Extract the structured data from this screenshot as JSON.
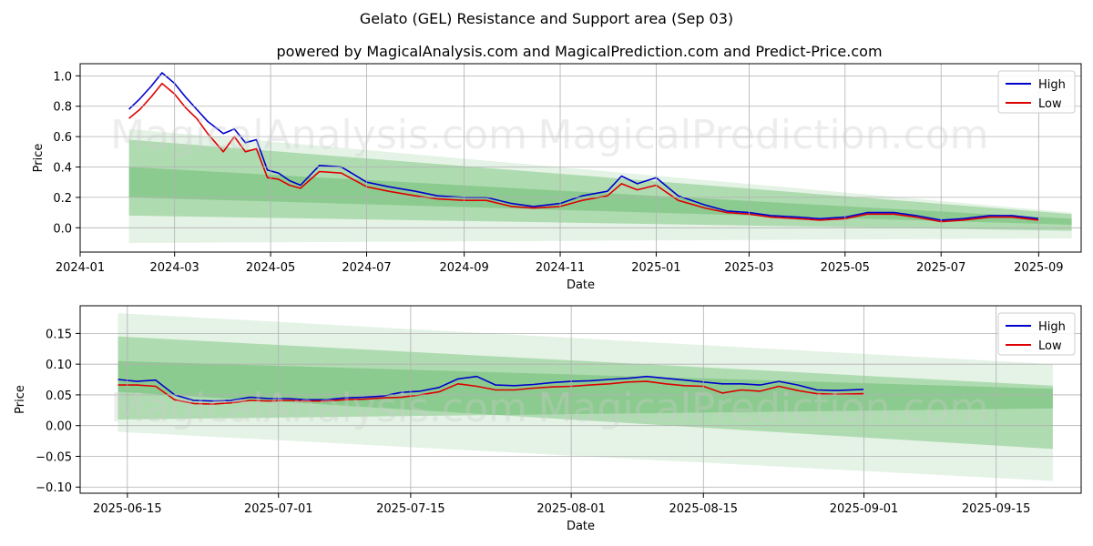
{
  "title": "Gelato (GEL) Resistance and Support area (Sep 03)",
  "subtitle": "powered by MagicalAnalysis.com and MagicalPrediction.com and Predict-Price.com",
  "watermarks": [
    "MagicalAnalysis.com",
    "MagicalPrediction.com"
  ],
  "colors": {
    "high": "#0000cc",
    "low": "#dd0000",
    "band": "#4caf50",
    "grid": "#b0b0b0"
  },
  "chart_data": [
    {
      "type": "line",
      "xlabel": "Date",
      "ylabel": "Price",
      "x_ticks": [
        "2024-01",
        "2024-03",
        "2024-05",
        "2024-07",
        "2024-09",
        "2024-11",
        "2025-01",
        "2025-03",
        "2025-05",
        "2025-07",
        "2025-09"
      ],
      "y_ticks": [
        "0.0",
        "0.2",
        "0.4",
        "0.6",
        "0.8",
        "1.0"
      ],
      "xlim": [
        "2024-01-01",
        "2025-09-28"
      ],
      "ylim": [
        -0.16,
        1.08
      ],
      "grid": true,
      "legend": "top-right",
      "legend_labels": [
        "High",
        "Low"
      ],
      "bands": [
        {
          "start": [
            "2024-02-01",
            0.58,
            0.08
          ],
          "end": [
            "2025-09-22",
            0.09,
            -0.02
          ],
          "opacity": 0.35
        },
        {
          "start": [
            "2024-02-01",
            0.4,
            0.2
          ],
          "end": [
            "2025-09-22",
            0.06,
            0.02
          ],
          "opacity": 0.35
        },
        {
          "start": [
            "2024-02-01",
            0.65,
            -0.1
          ],
          "end": [
            "2025-09-22",
            0.1,
            -0.07
          ],
          "opacity": 0.15
        }
      ],
      "series": [
        {
          "name": "High",
          "points": [
            [
              "2024-02-01",
              0.78
            ],
            [
              "2024-02-08",
              0.85
            ],
            [
              "2024-02-15",
              0.93
            ],
            [
              "2024-02-22",
              1.02
            ],
            [
              "2024-03-01",
              0.95
            ],
            [
              "2024-03-08",
              0.86
            ],
            [
              "2024-03-15",
              0.78
            ],
            [
              "2024-03-22",
              0.7
            ],
            [
              "2024-04-01",
              0.62
            ],
            [
              "2024-04-08",
              0.65
            ],
            [
              "2024-04-15",
              0.56
            ],
            [
              "2024-04-22",
              0.58
            ],
            [
              "2024-04-29",
              0.38
            ],
            [
              "2024-05-06",
              0.36
            ],
            [
              "2024-05-13",
              0.31
            ],
            [
              "2024-05-20",
              0.28
            ],
            [
              "2024-06-01",
              0.41
            ],
            [
              "2024-06-15",
              0.4
            ],
            [
              "2024-07-01",
              0.3
            ],
            [
              "2024-07-15",
              0.27
            ],
            [
              "2024-08-01",
              0.24
            ],
            [
              "2024-08-15",
              0.21
            ],
            [
              "2024-09-01",
              0.2
            ],
            [
              "2024-09-15",
              0.2
            ],
            [
              "2024-10-01",
              0.16
            ],
            [
              "2024-10-15",
              0.14
            ],
            [
              "2024-11-01",
              0.16
            ],
            [
              "2024-11-15",
              0.21
            ],
            [
              "2024-12-01",
              0.24
            ],
            [
              "2024-12-10",
              0.34
            ],
            [
              "2024-12-20",
              0.29
            ],
            [
              "2025-01-01",
              0.33
            ],
            [
              "2025-01-15",
              0.21
            ],
            [
              "2025-02-01",
              0.15
            ],
            [
              "2025-02-15",
              0.11
            ],
            [
              "2025-03-01",
              0.1
            ],
            [
              "2025-03-15",
              0.08
            ],
            [
              "2025-04-01",
              0.07
            ],
            [
              "2025-04-15",
              0.06
            ],
            [
              "2025-05-01",
              0.07
            ],
            [
              "2025-05-15",
              0.1
            ],
            [
              "2025-06-01",
              0.1
            ],
            [
              "2025-06-15",
              0.08
            ],
            [
              "2025-07-01",
              0.05
            ],
            [
              "2025-07-15",
              0.06
            ],
            [
              "2025-08-01",
              0.08
            ],
            [
              "2025-08-15",
              0.08
            ],
            [
              "2025-09-01",
              0.06
            ]
          ]
        },
        {
          "name": "Low",
          "points": [
            [
              "2024-02-01",
              0.72
            ],
            [
              "2024-02-08",
              0.78
            ],
            [
              "2024-02-15",
              0.86
            ],
            [
              "2024-02-22",
              0.95
            ],
            [
              "2024-03-01",
              0.88
            ],
            [
              "2024-03-08",
              0.79
            ],
            [
              "2024-03-15",
              0.72
            ],
            [
              "2024-03-22",
              0.62
            ],
            [
              "2024-04-01",
              0.5
            ],
            [
              "2024-04-08",
              0.6
            ],
            [
              "2024-04-15",
              0.5
            ],
            [
              "2024-04-22",
              0.52
            ],
            [
              "2024-04-29",
              0.33
            ],
            [
              "2024-05-06",
              0.32
            ],
            [
              "2024-05-13",
              0.28
            ],
            [
              "2024-05-20",
              0.26
            ],
            [
              "2024-06-01",
              0.37
            ],
            [
              "2024-06-15",
              0.36
            ],
            [
              "2024-07-01",
              0.27
            ],
            [
              "2024-07-15",
              0.24
            ],
            [
              "2024-08-01",
              0.21
            ],
            [
              "2024-08-15",
              0.19
            ],
            [
              "2024-09-01",
              0.18
            ],
            [
              "2024-09-15",
              0.18
            ],
            [
              "2024-10-01",
              0.14
            ],
            [
              "2024-10-15",
              0.13
            ],
            [
              "2024-11-01",
              0.14
            ],
            [
              "2024-11-15",
              0.18
            ],
            [
              "2024-12-01",
              0.21
            ],
            [
              "2024-12-10",
              0.29
            ],
            [
              "2024-12-20",
              0.25
            ],
            [
              "2025-01-01",
              0.28
            ],
            [
              "2025-01-15",
              0.18
            ],
            [
              "2025-02-01",
              0.13
            ],
            [
              "2025-02-15",
              0.1
            ],
            [
              "2025-03-01",
              0.09
            ],
            [
              "2025-03-15",
              0.07
            ],
            [
              "2025-04-01",
              0.06
            ],
            [
              "2025-04-15",
              0.05
            ],
            [
              "2025-05-01",
              0.06
            ],
            [
              "2025-05-15",
              0.09
            ],
            [
              "2025-06-01",
              0.09
            ],
            [
              "2025-06-15",
              0.07
            ],
            [
              "2025-07-01",
              0.04
            ],
            [
              "2025-07-15",
              0.05
            ],
            [
              "2025-08-01",
              0.07
            ],
            [
              "2025-08-15",
              0.07
            ],
            [
              "2025-09-01",
              0.05
            ]
          ]
        }
      ]
    },
    {
      "type": "line",
      "xlabel": "Date",
      "ylabel": "Price",
      "x_ticks": [
        "2025-06-15",
        "2025-07-01",
        "2025-07-15",
        "2025-08-01",
        "2025-08-15",
        "2025-09-01",
        "2025-09-15"
      ],
      "y_ticks": [
        "−0.10",
        "−0.05",
        "0.00",
        "0.05",
        "0.10",
        "0.15"
      ],
      "xlim": [
        "2025-06-10",
        "2025-09-24"
      ],
      "ylim": [
        -0.11,
        0.195
      ],
      "grid": true,
      "legend": "top-right",
      "legend_labels": [
        "High",
        "Low"
      ],
      "bands": [
        {
          "start": [
            "2025-06-14",
            0.145,
            0.055
          ],
          "end": [
            "2025-09-21",
            0.065,
            -0.038
          ],
          "opacity": 0.35
        },
        {
          "start": [
            "2025-06-14",
            0.105,
            0.01
          ],
          "end": [
            "2025-09-21",
            0.06,
            0.028
          ],
          "opacity": 0.35
        },
        {
          "start": [
            "2025-06-14",
            0.183,
            -0.01
          ],
          "end": [
            "2025-09-21",
            0.1,
            -0.09
          ],
          "opacity": 0.15
        }
      ],
      "series": [
        {
          "name": "High",
          "points": [
            [
              "2025-06-14",
              0.075
            ],
            [
              "2025-06-16",
              0.072
            ],
            [
              "2025-06-18",
              0.074
            ],
            [
              "2025-06-20",
              0.05
            ],
            [
              "2025-06-22",
              0.041
            ],
            [
              "2025-06-24",
              0.04
            ],
            [
              "2025-06-26",
              0.041
            ],
            [
              "2025-06-28",
              0.046
            ],
            [
              "2025-06-30",
              0.044
            ],
            [
              "2025-07-02",
              0.044
            ],
            [
              "2025-07-04",
              0.042
            ],
            [
              "2025-07-06",
              0.042
            ],
            [
              "2025-07-08",
              0.045
            ],
            [
              "2025-07-10",
              0.046
            ],
            [
              "2025-07-12",
              0.048
            ],
            [
              "2025-07-14",
              0.054
            ],
            [
              "2025-07-16",
              0.056
            ],
            [
              "2025-07-18",
              0.062
            ],
            [
              "2025-07-20",
              0.076
            ],
            [
              "2025-07-22",
              0.08
            ],
            [
              "2025-07-24",
              0.066
            ],
            [
              "2025-07-26",
              0.065
            ],
            [
              "2025-07-28",
              0.067
            ],
            [
              "2025-07-30",
              0.07
            ],
            [
              "2025-08-01",
              0.072
            ],
            [
              "2025-08-03",
              0.073
            ],
            [
              "2025-08-05",
              0.075
            ],
            [
              "2025-08-07",
              0.077
            ],
            [
              "2025-08-09",
              0.08
            ],
            [
              "2025-08-11",
              0.077
            ],
            [
              "2025-08-13",
              0.074
            ],
            [
              "2025-08-15",
              0.071
            ],
            [
              "2025-08-17",
              0.068
            ],
            [
              "2025-08-19",
              0.068
            ],
            [
              "2025-08-21",
              0.066
            ],
            [
              "2025-08-23",
              0.072
            ],
            [
              "2025-08-25",
              0.066
            ],
            [
              "2025-08-27",
              0.058
            ],
            [
              "2025-08-29",
              0.057
            ],
            [
              "2025-09-01",
              0.059
            ]
          ]
        },
        {
          "name": "Low",
          "points": [
            [
              "2025-06-14",
              0.066
            ],
            [
              "2025-06-16",
              0.066
            ],
            [
              "2025-06-18",
              0.064
            ],
            [
              "2025-06-20",
              0.042
            ],
            [
              "2025-06-22",
              0.036
            ],
            [
              "2025-06-24",
              0.035
            ],
            [
              "2025-06-26",
              0.037
            ],
            [
              "2025-06-28",
              0.041
            ],
            [
              "2025-06-30",
              0.04
            ],
            [
              "2025-07-02",
              0.041
            ],
            [
              "2025-07-04",
              0.04
            ],
            [
              "2025-07-06",
              0.04
            ],
            [
              "2025-07-08",
              0.042
            ],
            [
              "2025-07-10",
              0.043
            ],
            [
              "2025-07-12",
              0.045
            ],
            [
              "2025-07-14",
              0.046
            ],
            [
              "2025-07-16",
              0.05
            ],
            [
              "2025-07-18",
              0.055
            ],
            [
              "2025-07-20",
              0.068
            ],
            [
              "2025-07-22",
              0.064
            ],
            [
              "2025-07-24",
              0.058
            ],
            [
              "2025-07-26",
              0.058
            ],
            [
              "2025-07-28",
              0.061
            ],
            [
              "2025-07-30",
              0.063
            ],
            [
              "2025-08-01",
              0.064
            ],
            [
              "2025-08-03",
              0.066
            ],
            [
              "2025-08-05",
              0.068
            ],
            [
              "2025-08-07",
              0.071
            ],
            [
              "2025-08-09",
              0.072
            ],
            [
              "2025-08-11",
              0.068
            ],
            [
              "2025-08-13",
              0.065
            ],
            [
              "2025-08-15",
              0.064
            ],
            [
              "2025-08-17",
              0.053
            ],
            [
              "2025-08-19",
              0.058
            ],
            [
              "2025-08-21",
              0.056
            ],
            [
              "2025-08-23",
              0.064
            ],
            [
              "2025-08-25",
              0.057
            ],
            [
              "2025-08-27",
              0.052
            ],
            [
              "2025-08-29",
              0.051
            ],
            [
              "2025-09-01",
              0.052
            ]
          ]
        }
      ]
    }
  ]
}
